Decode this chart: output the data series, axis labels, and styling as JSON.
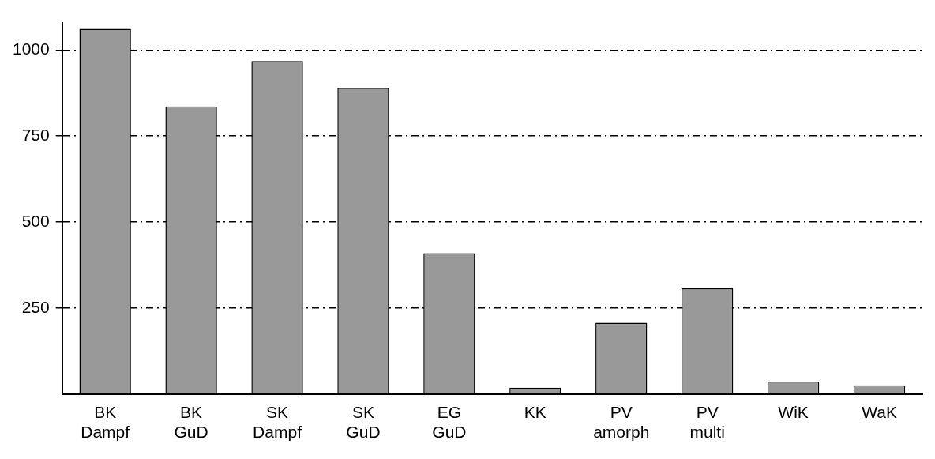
{
  "chart_data": {
    "type": "bar",
    "categories": [
      "BK\nDampf",
      "BK\nGuD",
      "SK\nDampf",
      "SK\nGuD",
      "EG\nGuD",
      "KK",
      "PV\namorph",
      "PV\nmulti",
      "WiK",
      "WaK"
    ],
    "values": [
      1062,
      836,
      968,
      890,
      409,
      18,
      207,
      307,
      36,
      25
    ],
    "color": "#999999",
    "ylim": [
      0,
      1080
    ],
    "yticks": [
      250,
      500,
      750,
      1000
    ],
    "grid": "y",
    "legend": false
  }
}
